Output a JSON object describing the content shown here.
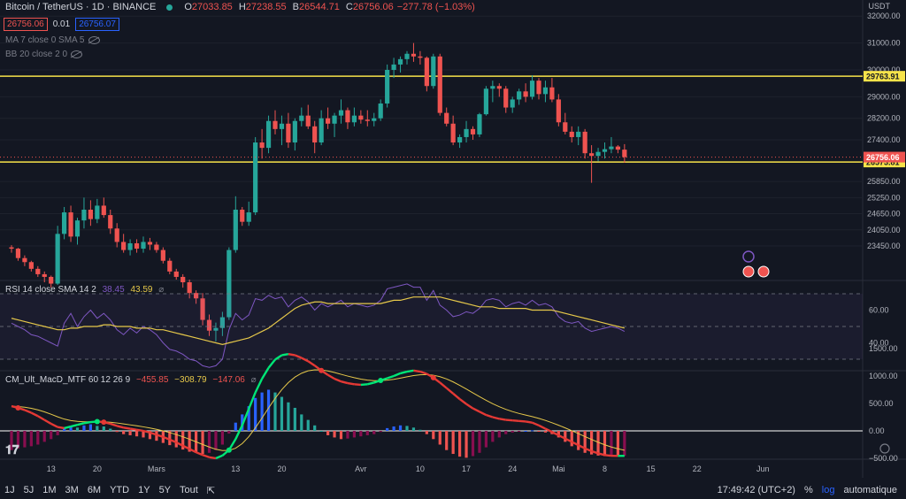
{
  "header": {
    "title": "Bitcoin / TetherUS · 1D · BINANCE",
    "ohlc": [
      {
        "k": "O",
        "v": "27033.85"
      },
      {
        "k": "H",
        "v": "27238.55"
      },
      {
        "k": "B",
        "v": "26544.71"
      },
      {
        "k": "C",
        "v": "26756.06"
      }
    ],
    "change": "−277.78 (−1.03%)",
    "sell_price": "26756.06",
    "spread": "0.01",
    "buy_price": "26756.07"
  },
  "indicators": {
    "ma": "MA 7 close 0 SMA 5",
    "bb": "BB 20 close 2 0"
  },
  "rsi": {
    "label": "RSI 14 close SMA 14 2",
    "v1": "38.45",
    "v2": "43.59",
    "ticks": [
      {
        "t": "60.00",
        "v": 60
      },
      {
        "t": "40.00",
        "v": 40
      }
    ],
    "color": "#7e57c2"
  },
  "macd": {
    "label": "CM_Ult_MacD_MTF 60 12 26 9",
    "v1": "−455.85",
    "v2": "−308.79",
    "v3": "−147.06",
    "ticks": [
      {
        "t": "1500.00",
        "v": 1500
      },
      {
        "t": "1000.00",
        "v": 1000
      },
      {
        "t": "500.00",
        "v": 500
      },
      {
        "t": "0.00",
        "v": 0
      },
      {
        "t": "−500.00",
        "v": -500
      }
    ]
  },
  "price_axis": {
    "currency": "USDT",
    "ticks": [
      {
        "t": "32000.00",
        "v": 32000
      },
      {
        "t": "31000.00",
        "v": 31000
      },
      {
        "t": "30000.00",
        "v": 30000
      },
      {
        "t": "29000.00",
        "v": 29000
      },
      {
        "t": "28200.00",
        "v": 28200
      },
      {
        "t": "27400.00",
        "v": 27400
      },
      {
        "t": "25850.00",
        "v": 25850
      },
      {
        "t": "25250.00",
        "v": 25250
      },
      {
        "t": "24650.00",
        "v": 24650
      },
      {
        "t": "24050.00",
        "v": 24050
      },
      {
        "t": "23450.00",
        "v": 23450
      }
    ],
    "resistance": {
      "t": "29763.91",
      "v": 29763.91
    },
    "last": {
      "t": "26756.06",
      "v": 26756.06
    },
    "support": {
      "t": "26573.81",
      "v": 26573.81
    }
  },
  "time_axis": [
    {
      "t": "13",
      "i": 6
    },
    {
      "t": "20",
      "i": 13
    },
    {
      "t": "Mars",
      "i": 22
    },
    {
      "t": "13",
      "i": 34
    },
    {
      "t": "20",
      "i": 41
    },
    {
      "t": "Avr",
      "i": 53
    },
    {
      "t": "10",
      "i": 62
    },
    {
      "t": "17",
      "i": 69
    },
    {
      "t": "24",
      "i": 76
    },
    {
      "t": "Mai",
      "i": 83
    },
    {
      "t": "8",
      "i": 90
    },
    {
      "t": "15",
      "i": 97
    },
    {
      "t": "22",
      "i": 104
    },
    {
      "t": "Jun",
      "i": 114
    }
  ],
  "candles": [
    [
      23400,
      23480,
      23200,
      23350
    ],
    [
      23350,
      23380,
      22900,
      23000
    ],
    [
      23000,
      23100,
      22700,
      22850
    ],
    [
      22850,
      22900,
      22500,
      22600
    ],
    [
      22600,
      22700,
      22300,
      22400
    ],
    [
      22400,
      22500,
      22100,
      22300
    ],
    [
      22300,
      22350,
      21900,
      22050
    ],
    [
      22050,
      24200,
      22000,
      23900
    ],
    [
      23900,
      24900,
      23700,
      24700
    ],
    [
      24700,
      24950,
      23600,
      23800
    ],
    [
      23800,
      24500,
      23500,
      24400
    ],
    [
      24400,
      25250,
      24100,
      24800
    ],
    [
      24800,
      25150,
      24200,
      24450
    ],
    [
      24450,
      25200,
      24300,
      24950
    ],
    [
      24950,
      25250,
      24500,
      24600
    ],
    [
      24600,
      24800,
      23900,
      24100
    ],
    [
      24100,
      24300,
      23400,
      23600
    ],
    [
      23600,
      23900,
      23200,
      23300
    ],
    [
      23300,
      23700,
      23100,
      23550
    ],
    [
      23550,
      23700,
      23200,
      23350
    ],
    [
      23350,
      23800,
      23200,
      23600
    ],
    [
      23600,
      23750,
      23300,
      23500
    ],
    [
      23500,
      23600,
      23200,
      23300
    ],
    [
      23300,
      23400,
      22800,
      22900
    ],
    [
      22900,
      23000,
      22400,
      22500
    ],
    [
      22500,
      22600,
      22200,
      22300
    ],
    [
      22300,
      22400,
      21900,
      22100
    ],
    [
      22100,
      22200,
      21500,
      21700
    ],
    [
      21700,
      21800,
      21300,
      21500
    ],
    [
      21500,
      21700,
      20500,
      20700
    ],
    [
      20700,
      20900,
      20100,
      20300
    ],
    [
      20300,
      20600,
      19900,
      20400
    ],
    [
      20400,
      21000,
      20100,
      20800
    ],
    [
      20800,
      23400,
      20700,
      23300
    ],
    [
      23300,
      25300,
      23200,
      24800
    ],
    [
      24800,
      24900,
      24200,
      24350
    ],
    [
      24350,
      25100,
      24200,
      24700
    ],
    [
      24700,
      27500,
      24600,
      27300
    ],
    [
      27300,
      27800,
      26700,
      27100
    ],
    [
      27100,
      28300,
      26900,
      28100
    ],
    [
      28100,
      28500,
      27600,
      27800
    ],
    [
      27800,
      28300,
      27200,
      28000
    ],
    [
      28000,
      28400,
      27100,
      27300
    ],
    [
      27300,
      28200,
      27000,
      28100
    ],
    [
      28100,
      28600,
      27900,
      28300
    ],
    [
      28300,
      28700,
      27800,
      27900
    ],
    [
      27900,
      28100,
      26900,
      27300
    ],
    [
      27300,
      28500,
      27200,
      28200
    ],
    [
      28200,
      28600,
      27800,
      28000
    ],
    [
      28000,
      28400,
      27500,
      28300
    ],
    [
      28300,
      28900,
      28000,
      28500
    ],
    [
      28500,
      28600,
      27800,
      28050
    ],
    [
      28050,
      28600,
      27900,
      28300
    ],
    [
      28300,
      28500,
      28000,
      28150
    ],
    [
      28150,
      28500,
      27900,
      28100
    ],
    [
      28100,
      28400,
      27900,
      28200
    ],
    [
      28200,
      28900,
      28100,
      28750
    ],
    [
      28750,
      30200,
      28600,
      30000
    ],
    [
      30000,
      30450,
      29700,
      30200
    ],
    [
      30200,
      30500,
      29900,
      30400
    ],
    [
      30400,
      30700,
      30200,
      30600
    ],
    [
      30600,
      31000,
      30300,
      30500
    ],
    [
      30500,
      30700,
      30200,
      30450
    ],
    [
      30450,
      30500,
      29200,
      29400
    ],
    [
      29400,
      30600,
      29300,
      30500
    ],
    [
      30500,
      30600,
      28300,
      28400
    ],
    [
      28400,
      28600,
      27900,
      28000
    ],
    [
      28000,
      28300,
      27200,
      27300
    ],
    [
      27300,
      27600,
      27100,
      27500
    ],
    [
      27500,
      28100,
      27300,
      27800
    ],
    [
      27800,
      27900,
      27400,
      27600
    ],
    [
      27600,
      28400,
      27500,
      28350
    ],
    [
      28350,
      29400,
      28300,
      29300
    ],
    [
      29300,
      29600,
      28800,
      29400
    ],
    [
      29400,
      29500,
      29000,
      29300
    ],
    [
      29300,
      29400,
      28400,
      28600
    ],
    [
      28600,
      29000,
      28400,
      28900
    ],
    [
      28900,
      29300,
      28700,
      29200
    ],
    [
      29200,
      29500,
      28800,
      29000
    ],
    [
      29000,
      29800,
      28900,
      29600
    ],
    [
      29600,
      29700,
      28900,
      29100
    ],
    [
      29100,
      29600,
      28800,
      29350
    ],
    [
      29350,
      29700,
      28800,
      28900
    ],
    [
      28900,
      29100,
      27900,
      28050
    ],
    [
      28050,
      28400,
      27600,
      27700
    ],
    [
      27700,
      27900,
      27300,
      27500
    ],
    [
      27500,
      27900,
      27200,
      27700
    ],
    [
      27700,
      27800,
      26700,
      26900
    ],
    [
      26900,
      27200,
      25800,
      26800
    ],
    [
      26800,
      27100,
      26600,
      26950
    ],
    [
      26950,
      27300,
      26700,
      27050
    ],
    [
      27050,
      27500,
      26900,
      27150
    ],
    [
      27150,
      27200,
      26900,
      27033.85
    ],
    [
      27033.85,
      27238.55,
      26544.71,
      26756.06
    ]
  ],
  "rsi_series": [
    {
      "s": 0,
      "v": [
        52,
        50,
        48,
        45,
        44,
        42,
        40,
        38,
        52,
        58,
        50,
        56,
        60,
        55,
        58,
        54,
        48,
        45,
        49,
        46,
        50,
        48,
        45,
        40,
        36,
        35,
        33,
        30,
        29,
        26,
        25,
        26,
        30,
        48,
        58,
        54,
        57,
        67,
        66,
        69,
        67,
        68,
        62,
        66,
        68,
        65,
        60,
        64,
        62,
        64,
        66,
        62,
        64,
        63,
        62,
        63,
        66,
        73,
        74,
        75,
        76,
        74,
        74,
        66,
        72,
        63,
        60,
        56,
        57,
        59,
        58,
        61,
        66,
        67,
        66,
        62,
        64,
        65,
        63,
        66,
        63,
        64,
        62,
        56,
        53,
        52,
        53,
        49,
        47,
        48,
        49,
        50,
        49,
        47
      ]
    },
    {
      "s": 0,
      "v": [
        55,
        54,
        53,
        52,
        51,
        50,
        49,
        48,
        48,
        49,
        49,
        50,
        50,
        50,
        51,
        51,
        50,
        50,
        50,
        49,
        49,
        49,
        48,
        48,
        47,
        46,
        45,
        44,
        43,
        42,
        41,
        40,
        39,
        40,
        41,
        42,
        43,
        45,
        47,
        49,
        52,
        55,
        58,
        61,
        63,
        64,
        65,
        65,
        64,
        64,
        64,
        64,
        64,
        64,
        64,
        64,
        64,
        65,
        66,
        66,
        67,
        68,
        68,
        68,
        68,
        68,
        67,
        66,
        65,
        64,
        63,
        62,
        62,
        62,
        61,
        61,
        61,
        61,
        61,
        60,
        60,
        60,
        60,
        59,
        58,
        57,
        56,
        55,
        54,
        53,
        52,
        51,
        50,
        49
      ]
    }
  ],
  "macd_series": {
    "hist": [
      -350,
      -320,
      -300,
      -280,
      -250,
      -200,
      -150,
      -80,
      50,
      80,
      60,
      100,
      120,
      90,
      80,
      40,
      -20,
      -60,
      -80,
      -100,
      -120,
      -150,
      -180,
      -220,
      -260,
      -300,
      -340,
      -380,
      -400,
      -420,
      -400,
      -350,
      -250,
      -50,
      150,
      300,
      450,
      600,
      700,
      750,
      700,
      620,
      520,
      420,
      300,
      200,
      100,
      0,
      -80,
      -120,
      -150,
      -140,
      -120,
      -100,
      -80,
      -60,
      -20,
      50,
      80,
      100,
      90,
      60,
      20,
      -60,
      -150,
      -250,
      -350,
      -420,
      -470,
      -490,
      -460,
      -400,
      -300,
      -200,
      -120,
      -60,
      -30,
      -10,
      0,
      10,
      -10,
      -30,
      -60,
      -120,
      -200,
      -280,
      -350,
      -400,
      -430,
      -450,
      -460,
      -455,
      -456,
      -456
    ],
    "macd": [
      450,
      420,
      380,
      330,
      270,
      200,
      130,
      70,
      50,
      80,
      110,
      140,
      160,
      170,
      160,
      130,
      90,
      60,
      40,
      20,
      0,
      -30,
      -70,
      -110,
      -160,
      -210,
      -270,
      -330,
      -390,
      -440,
      -480,
      -500,
      -450,
      -350,
      -150,
      100,
      400,
      700,
      950,
      1150,
      1300,
      1380,
      1400,
      1380,
      1330,
      1270,
      1190,
      1100,
      1020,
      950,
      900,
      870,
      850,
      840,
      850,
      880,
      920,
      960,
      1000,
      1050,
      1080,
      1100,
      1080,
      1040,
      970,
      880,
      780,
      680,
      580,
      490,
      410,
      350,
      290,
      250,
      220,
      200,
      190,
      180,
      170,
      150,
      100,
      40,
      -20,
      -80,
      -140,
      -200,
      -260,
      -320,
      -370,
      -410,
      -440,
      -455,
      -456,
      -456
    ]
  }
}
